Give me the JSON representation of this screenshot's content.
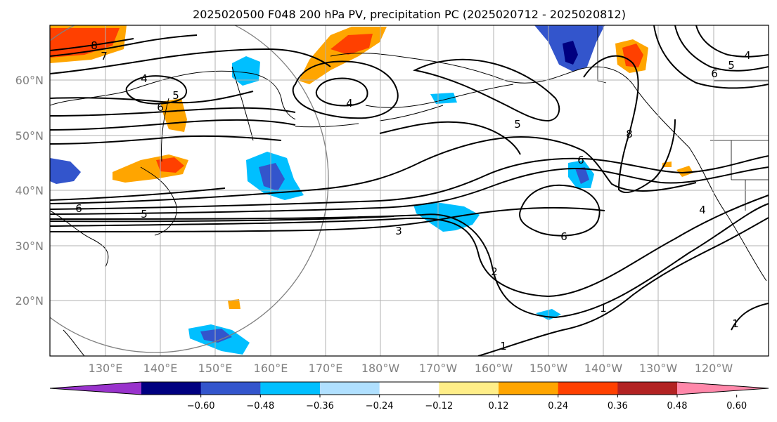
{
  "chart_data": {
    "type": "map-contour",
    "title": "2025020500 F048 200 hPa PV, precipitation PC (2025020712 - 2025020812)",
    "lat_ticks": [
      "60°N",
      "50°N",
      "40°N",
      "30°N",
      "20°N"
    ],
    "lon_ticks": [
      "130°E",
      "140°E",
      "150°E",
      "160°E",
      "170°E",
      "180°W",
      "170°W",
      "160°W",
      "150°W",
      "140°W",
      "130°W",
      "120°W"
    ],
    "grid": true,
    "contour_field": "200 hPa PV",
    "contour_labels": [
      "8",
      "7",
      "4",
      "5",
      "6",
      "4",
      "5",
      "4",
      "5",
      "6",
      "8",
      "6",
      "5",
      "6",
      "3",
      "6",
      "2",
      "1",
      "1",
      "1",
      "4"
    ],
    "shaded_field": "precipitation PC",
    "colorbar": {
      "ticks": [
        "−0.60",
        "−0.48",
        "−0.36",
        "−0.24",
        "−0.12",
        "0.12",
        "0.24",
        "0.36",
        "0.48",
        "0.60"
      ],
      "colors": [
        "#9933cc",
        "#000080",
        "#3355cc",
        "#00bfff",
        "#b0e0ff",
        "#ffffff",
        "#ffee88",
        "#ffa500",
        "#ff4000",
        "#b22222",
        "#ff88aa"
      ],
      "extend": "both"
    }
  }
}
